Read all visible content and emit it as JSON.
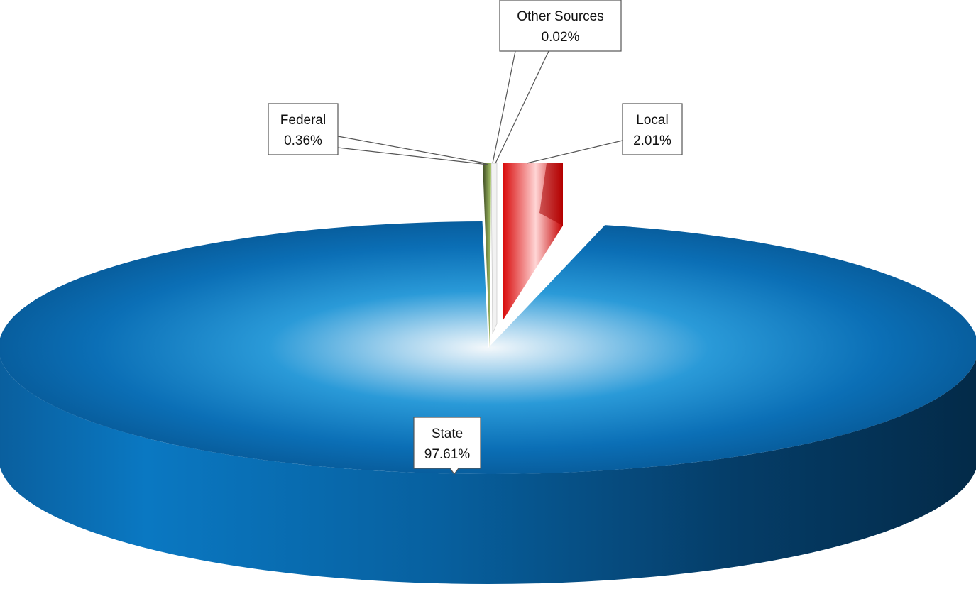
{
  "chart_data": {
    "type": "pie",
    "style": "3d-exploded",
    "legend": "none",
    "slices": [
      {
        "name": "State",
        "value": 97.61,
        "label": "97.61%",
        "color": "#0a6fb8"
      },
      {
        "name": "Local",
        "value": 2.01,
        "label": "2.01%",
        "color": "#e41010"
      },
      {
        "name": "Other Sources",
        "value": 0.02,
        "label": "0.02%",
        "color": "#9a9a9a"
      },
      {
        "name": "Federal",
        "value": 0.36,
        "label": "0.36%",
        "color": "#8fb04a"
      }
    ]
  }
}
